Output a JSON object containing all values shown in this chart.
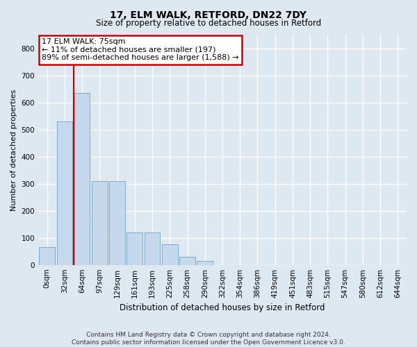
{
  "title1": "17, ELM WALK, RETFORD, DN22 7DY",
  "title2": "Size of property relative to detached houses in Retford",
  "xlabel": "Distribution of detached houses by size in Retford",
  "ylabel": "Number of detached properties",
  "categories": [
    "0sqm",
    "32sqm",
    "64sqm",
    "97sqm",
    "129sqm",
    "161sqm",
    "193sqm",
    "225sqm",
    "258sqm",
    "290sqm",
    "322sqm",
    "354sqm",
    "386sqm",
    "419sqm",
    "451sqm",
    "483sqm",
    "515sqm",
    "547sqm",
    "580sqm",
    "612sqm",
    "644sqm"
  ],
  "bar_values": [
    65,
    530,
    635,
    310,
    310,
    120,
    120,
    75,
    30,
    15,
    0,
    0,
    0,
    0,
    0,
    0,
    0,
    0,
    0,
    0,
    0
  ],
  "bar_color": "#c5d8ec",
  "bar_edgecolor": "#7aaace",
  "ylim": [
    0,
    850
  ],
  "yticks": [
    0,
    100,
    200,
    300,
    400,
    500,
    600,
    700,
    800
  ],
  "property_line_x": 1.5,
  "annotation_text": "17 ELM WALK: 75sqm\n← 11% of detached houses are smaller (197)\n89% of semi-detached houses are larger (1,588) →",
  "annotation_box_facecolor": "#ffffff",
  "annotation_box_edgecolor": "#cc0000",
  "red_line_color": "#cc0000",
  "footer_line1": "Contains HM Land Registry data © Crown copyright and database right 2024.",
  "footer_line2": "Contains public sector information licensed under the Open Government Licence v3.0.",
  "bg_color": "#dde8f0",
  "plot_bg_color": "#dde8f0",
  "grid_color": "#ffffff",
  "title1_fontsize": 10,
  "title2_fontsize": 8.5,
  "xlabel_fontsize": 8.5,
  "ylabel_fontsize": 8,
  "tick_fontsize": 7.5,
  "footer_fontsize": 6.5
}
